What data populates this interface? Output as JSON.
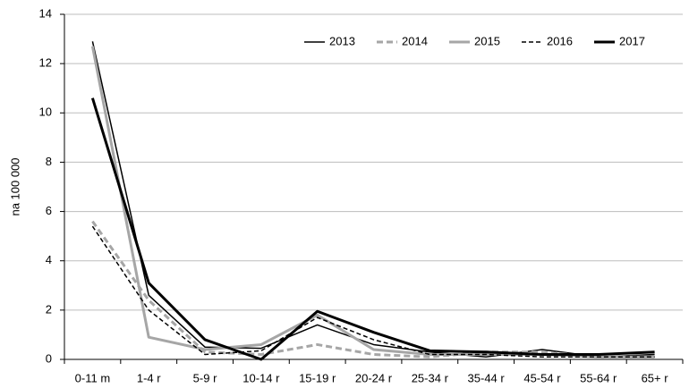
{
  "chart_data": {
    "type": "line",
    "y_label": "na 100 000",
    "categories": [
      "0-11 m",
      "1-4 r",
      "5-9 r",
      "10-14 r",
      "15-19 r",
      "20-24 r",
      "25-34 r",
      "35-44 r",
      "45-54 r",
      "55-64 r",
      "65+ r"
    ],
    "ylim": [
      0,
      14
    ],
    "yticks": [
      0,
      2,
      4,
      6,
      8,
      10,
      12,
      14
    ],
    "grid": true,
    "legend": "top-right",
    "series": [
      {
        "name": "2013",
        "color": "#000000",
        "width": 1.5,
        "dash": "solid",
        "values": [
          12.9,
          2.6,
          0.5,
          0.45,
          1.4,
          0.6,
          0.3,
          0.1,
          0.4,
          0.1,
          0.2
        ]
      },
      {
        "name": "2014",
        "color": "#a6a6a6",
        "width": 3,
        "dash": "dashed",
        "values": [
          5.6,
          2.4,
          0.3,
          0.2,
          0.6,
          0.2,
          0.1,
          0.3,
          0.3,
          0.1,
          0.1
        ]
      },
      {
        "name": "2015",
        "color": "#a6a6a6",
        "width": 3,
        "dash": "solid",
        "values": [
          12.7,
          0.9,
          0.4,
          0.6,
          1.8,
          0.4,
          0.2,
          0.2,
          0.2,
          0.1,
          0.1
        ]
      },
      {
        "name": "2016",
        "color": "#000000",
        "width": 1.5,
        "dash": "dashed",
        "values": [
          5.4,
          2.0,
          0.2,
          0.35,
          1.7,
          0.8,
          0.2,
          0.2,
          0.1,
          0.1,
          0.1
        ]
      },
      {
        "name": "2017",
        "color": "#000000",
        "width": 3,
        "dash": "solid",
        "values": [
          10.6,
          3.1,
          0.8,
          0.0,
          1.95,
          1.1,
          0.35,
          0.3,
          0.2,
          0.2,
          0.3
        ]
      }
    ]
  }
}
